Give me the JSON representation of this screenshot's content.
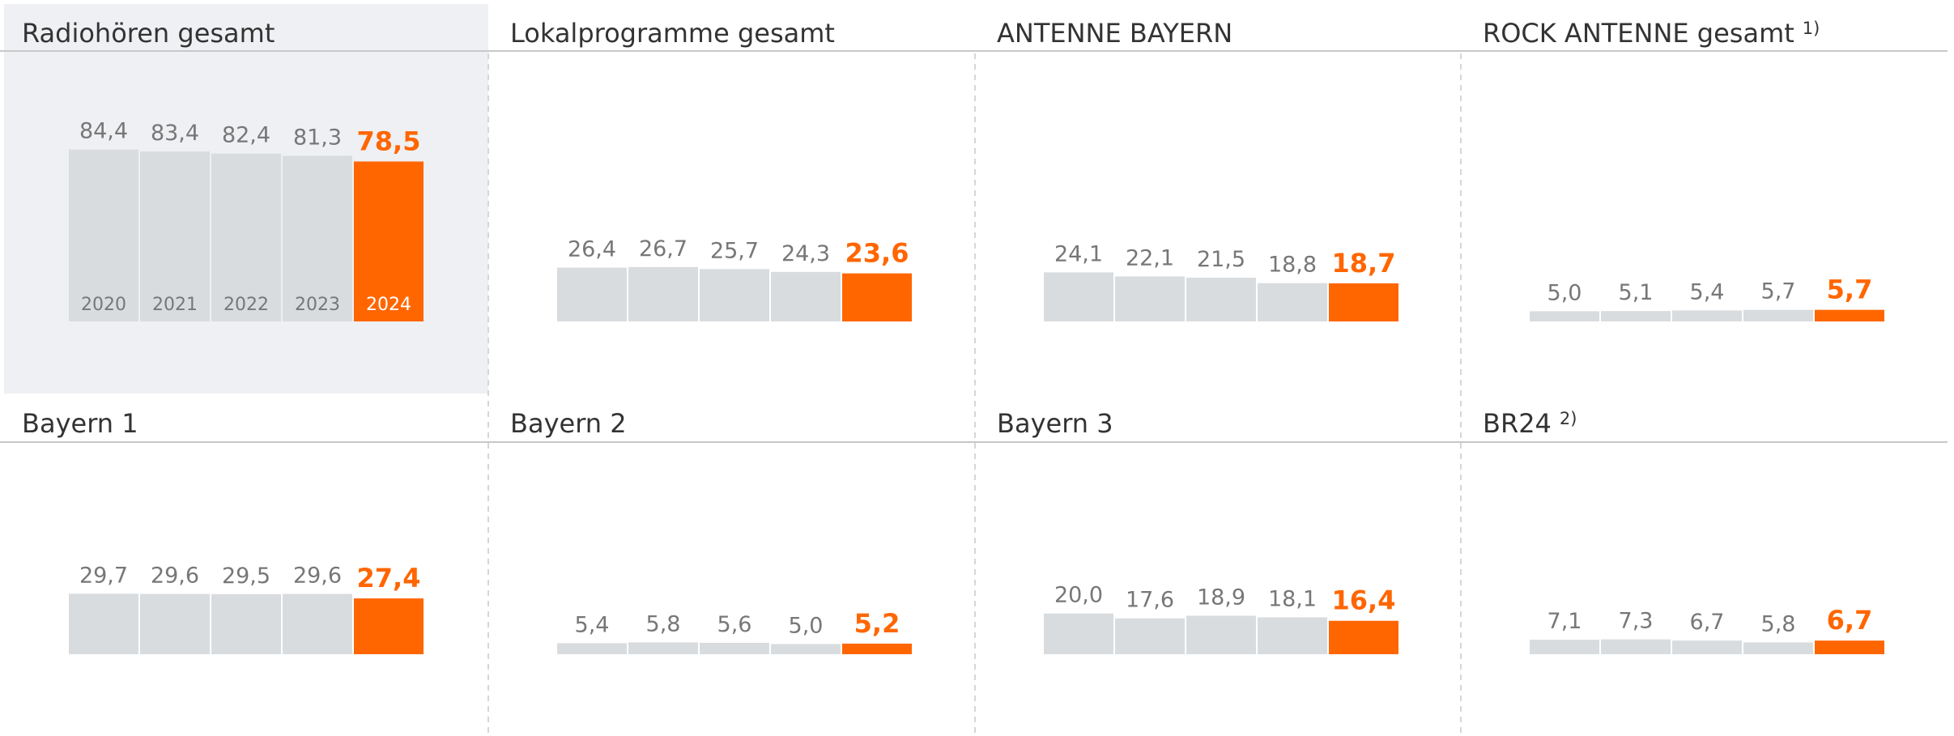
{
  "chart_data": [
    {
      "type": "bar",
      "title": "Radiohören gesamt",
      "categories": [
        "2020",
        "2021",
        "2022",
        "2023",
        "2024"
      ],
      "values": [
        84.4,
        83.4,
        82.4,
        81.3,
        78.5
      ],
      "value_labels": [
        "84,4",
        "83,4",
        "82,4",
        "81,3",
        "78,5"
      ],
      "colors": [
        "#d9dcdf",
        "#d9dcdf",
        "#d9dcdf",
        "#d9dcdf",
        "#ff6600"
      ]
    },
    {
      "type": "bar",
      "title": "Lokalprogramme gesamt",
      "values": [
        26.4,
        26.7,
        25.7,
        24.3,
        23.6
      ],
      "value_labels": [
        "26,4",
        "26,7",
        "25,7",
        "24,3",
        "23,6"
      ],
      "colors": [
        "#d9dcdf",
        "#d9dcdf",
        "#d9dcdf",
        "#d9dcdf",
        "#ff6600"
      ]
    },
    {
      "type": "bar",
      "title": "ANTENNE BAYERN",
      "values": [
        24.1,
        22.1,
        21.5,
        18.8,
        18.7
      ],
      "value_labels": [
        "24,1",
        "22,1",
        "21,5",
        "18,8",
        "18,7"
      ],
      "colors": [
        "#d9dcdf",
        "#d9dcdf",
        "#d9dcdf",
        "#d9dcdf",
        "#ff6600"
      ]
    },
    {
      "type": "bar",
      "title": "ROCK ANTENNE gesamt",
      "footnote": "1)",
      "values": [
        5.0,
        5.1,
        5.4,
        5.7,
        5.7
      ],
      "value_labels": [
        "5,0",
        "5,1",
        "5,4",
        "5,7",
        "5,7"
      ],
      "colors": [
        "#d9dcdf",
        "#d9dcdf",
        "#d9dcdf",
        "#d9dcdf",
        "#ff6600"
      ]
    },
    {
      "type": "bar",
      "title": "Bayern 1",
      "values": [
        29.7,
        29.6,
        29.5,
        29.6,
        27.4
      ],
      "value_labels": [
        "29,7",
        "29,6",
        "29,5",
        "29,6",
        "27,4"
      ],
      "colors": [
        "#d9dcdf",
        "#d9dcdf",
        "#d9dcdf",
        "#d9dcdf",
        "#ff6600"
      ]
    },
    {
      "type": "bar",
      "title": "Bayern 2",
      "values": [
        5.4,
        5.8,
        5.6,
        5.0,
        5.2
      ],
      "value_labels": [
        "5,4",
        "5,8",
        "5,6",
        "5,0",
        "5,2"
      ],
      "colors": [
        "#d9dcdf",
        "#d9dcdf",
        "#d9dcdf",
        "#d9dcdf",
        "#ff6600"
      ]
    },
    {
      "type": "bar",
      "title": "Bayern 3",
      "values": [
        20.0,
        17.6,
        18.9,
        18.1,
        16.4
      ],
      "value_labels": [
        "20,0",
        "17,6",
        "18,9",
        "18,1",
        "16,4"
      ],
      "colors": [
        "#d9dcdf",
        "#d9dcdf",
        "#d9dcdf",
        "#d9dcdf",
        "#ff6600"
      ]
    },
    {
      "type": "bar",
      "title": "BR24",
      "footnote": "2)",
      "values": [
        7.1,
        7.3,
        6.7,
        5.8,
        6.7
      ],
      "value_labels": [
        "7,1",
        "7,3",
        "6,7",
        "5,8",
        "6,7"
      ],
      "colors": [
        "#d9dcdf",
        "#d9dcdf",
        "#d9dcdf",
        "#d9dcdf",
        "#ff6600"
      ]
    }
  ]
}
